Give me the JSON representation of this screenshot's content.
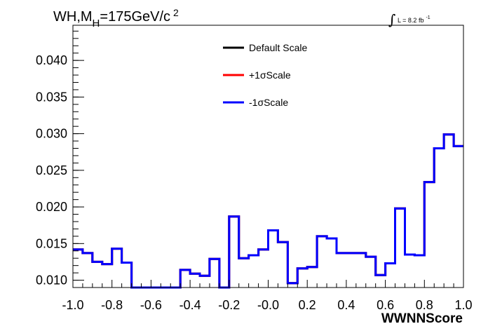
{
  "chart_data": {
    "type": "line",
    "step": true,
    "title_main": "WH,M",
    "title_sub": "H",
    "title_rest": "=175GeV/c",
    "title_sup": "2",
    "luminosity": {
      "integral": "∫",
      "text": "L = 8.2 fb",
      "sup": "-1"
    },
    "xlabel": "WWNNScore",
    "ylabel": "",
    "xlim": [
      -1.0,
      1.0
    ],
    "ylim": [
      0.009,
      0.0448
    ],
    "x_ticks": [
      "-1.0",
      "-0.8",
      "-0.6",
      "-0.4",
      "-0.2",
      "-0.0",
      "0.2",
      "0.4",
      "0.6",
      "0.8",
      "1.0"
    ],
    "y_ticks": [
      "0.010",
      "0.015",
      "0.020",
      "0.025",
      "0.030",
      "0.035",
      "0.040"
    ],
    "bin_edges": [
      -1.0,
      -0.95,
      -0.9,
      -0.85,
      -0.8,
      -0.75,
      -0.7,
      -0.65,
      -0.6,
      -0.55,
      -0.5,
      -0.45,
      -0.4,
      -0.35,
      -0.3,
      -0.25,
      -0.2,
      -0.15,
      -0.1,
      -0.05,
      0.0,
      0.05,
      0.1,
      0.15,
      0.2,
      0.25,
      0.3,
      0.35,
      0.4,
      0.45,
      0.5,
      0.55,
      0.6,
      0.65,
      0.7,
      0.75,
      0.8,
      0.85,
      0.9,
      0.95,
      1.0
    ],
    "legend_position": "top-center",
    "series": [
      {
        "name": "Default Scale",
        "color": "#000000",
        "values": [
          0.0142,
          0.0137,
          0.0125,
          0.0122,
          0.0143,
          0.0124,
          0.009,
          0.009,
          0.009,
          0.009,
          0.009,
          0.0114,
          0.0109,
          0.0106,
          0.0129,
          0.009,
          0.0187,
          0.013,
          0.0134,
          0.0142,
          0.0168,
          0.0152,
          0.0096,
          0.0116,
          0.0118,
          0.016,
          0.0157,
          0.0137,
          0.0137,
          0.0137,
          0.0132,
          0.0107,
          0.0123,
          0.0198,
          0.0135,
          0.0134,
          0.0234,
          0.028,
          0.0299,
          0.0283
        ]
      },
      {
        "name": "+1σScale",
        "color": "#ff0000",
        "values": [
          0.0142,
          0.0137,
          0.0125,
          0.0122,
          0.0143,
          0.0124,
          0.009,
          0.009,
          0.009,
          0.009,
          0.009,
          0.0114,
          0.0109,
          0.0106,
          0.0129,
          0.009,
          0.0187,
          0.013,
          0.0134,
          0.0142,
          0.0168,
          0.0152,
          0.0096,
          0.0116,
          0.0118,
          0.016,
          0.0157,
          0.0137,
          0.0137,
          0.0137,
          0.0132,
          0.0107,
          0.0123,
          0.0198,
          0.0135,
          0.0134,
          0.0234,
          0.028,
          0.0299,
          0.0283
        ]
      },
      {
        "name": "-1σScale",
        "color": "#0000ff",
        "values": [
          0.0142,
          0.0137,
          0.0125,
          0.0122,
          0.0143,
          0.0124,
          0.009,
          0.009,
          0.009,
          0.009,
          0.009,
          0.0114,
          0.0109,
          0.0106,
          0.0129,
          0.009,
          0.0187,
          0.013,
          0.0134,
          0.0142,
          0.0168,
          0.0152,
          0.0096,
          0.0116,
          0.0118,
          0.016,
          0.0157,
          0.0137,
          0.0137,
          0.0137,
          0.0132,
          0.0107,
          0.0123,
          0.0198,
          0.0135,
          0.0134,
          0.0234,
          0.028,
          0.0299,
          0.0283
        ]
      }
    ]
  }
}
